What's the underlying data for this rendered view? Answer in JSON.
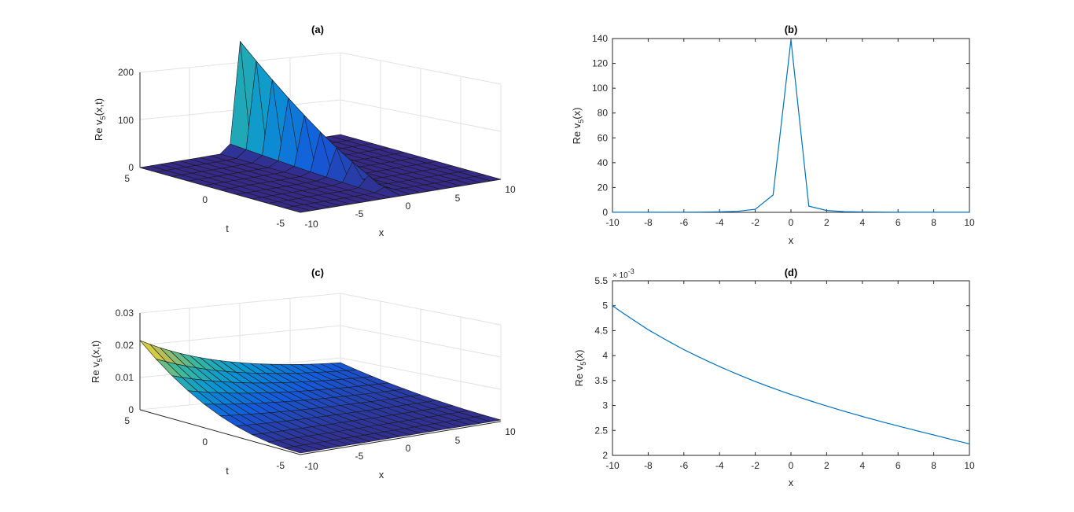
{
  "chart_data": [
    {
      "id": "a",
      "type": "surface",
      "title": "(a)",
      "xlabel": "x",
      "ylabel": "t",
      "zlabel": "Re v_5(x,t)",
      "zlabel_main": "Re v",
      "zlabel_sub": "5",
      "zlabel_tail": "(x,t)",
      "xlim": [
        -10,
        10
      ],
      "ylim": [
        -5,
        5
      ],
      "zlim": [
        0,
        200
      ],
      "xticks": [
        "-10",
        "-5",
        "0",
        "5",
        "10"
      ],
      "yticks": [
        "-5",
        "0",
        "5"
      ],
      "zticks": [
        "0",
        "100",
        "200"
      ],
      "description_values": {
        "peak_z": 230,
        "peak_x": 0,
        "peak_t": 5
      },
      "grid": true
    },
    {
      "id": "b",
      "type": "line",
      "title": "(b)",
      "xlabel": "x",
      "ylabel": "Re v_5(x)",
      "ylabel_main": "Re v",
      "ylabel_sub": "5",
      "ylabel_tail": "(x)",
      "xlim": [
        -10,
        10
      ],
      "ylim": [
        0,
        140
      ],
      "xticks": [
        "-10",
        "-8",
        "-6",
        "-4",
        "-2",
        "0",
        "2",
        "4",
        "6",
        "8",
        "10"
      ],
      "yticks": [
        "0",
        "20",
        "40",
        "60",
        "80",
        "100",
        "120",
        "140"
      ],
      "x": [
        -10,
        -9,
        -8,
        -7,
        -6,
        -5,
        -4,
        -3,
        -2,
        -1,
        0,
        1,
        2,
        3,
        4,
        5,
        6,
        7,
        8,
        9,
        10
      ],
      "y": [
        0.05,
        0.06,
        0.08,
        0.1,
        0.14,
        0.2,
        0.35,
        0.8,
        2.5,
        14,
        139,
        5,
        1.5,
        0.6,
        0.3,
        0.18,
        0.12,
        0.09,
        0.07,
        0.06,
        0.05
      ],
      "color": "#0072bd"
    },
    {
      "id": "c",
      "type": "surface",
      "title": "(c)",
      "xlabel": "x",
      "ylabel": "t",
      "zlabel": "Re v_5(x,t)",
      "zlabel_main": "Re v",
      "zlabel_sub": "5",
      "zlabel_tail": "(x,t)",
      "xlim": [
        -10,
        10
      ],
      "ylim": [
        -5,
        5
      ],
      "zlim": [
        0,
        0.03
      ],
      "xticks": [
        "-10",
        "-5",
        "0",
        "5",
        "10"
      ],
      "yticks": [
        "-5",
        "0",
        "5"
      ],
      "zticks": [
        "0",
        "0.01",
        "0.02",
        "0.03"
      ],
      "description_values": {
        "max_z": 0.021,
        "max_x": -10,
        "max_t": 5
      },
      "grid": true
    },
    {
      "id": "d",
      "type": "line",
      "title": "(d)",
      "xlabel": "x",
      "ylabel": "Re v_5(x)",
      "ylabel_main": "Re v",
      "ylabel_sub": "5",
      "ylabel_tail": "(x)",
      "xlim": [
        -10,
        10
      ],
      "ylim": [
        2,
        5.5
      ],
      "exponent": "× 10",
      "exponent_power": "-3",
      "xticks": [
        "-10",
        "-8",
        "-6",
        "-4",
        "-2",
        "0",
        "2",
        "4",
        "6",
        "8",
        "10"
      ],
      "yticks": [
        "2",
        "2.5",
        "3",
        "3.5",
        "4",
        "4.5",
        "5",
        "5.5"
      ],
      "x": [
        -10,
        -8,
        -6,
        -4,
        -2,
        0,
        2,
        4,
        6,
        8,
        10
      ],
      "y": [
        5.0,
        4.52,
        4.12,
        3.78,
        3.48,
        3.22,
        2.99,
        2.78,
        2.59,
        2.41,
        2.23
      ],
      "color": "#0072bd"
    }
  ]
}
